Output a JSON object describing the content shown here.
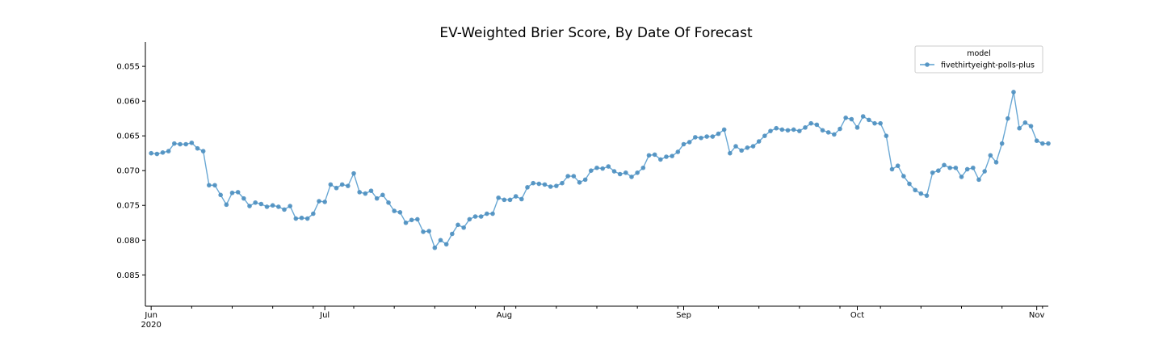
{
  "chart_data": {
    "type": "line",
    "title": "EV-Weighted Brier Score, By Date Of Forecast",
    "xlabel": "",
    "ylabel": "",
    "y_inverted": true,
    "ylim": [
      0.0515,
      0.0895
    ],
    "xlim": [
      "2020-05-31",
      "2020-11-03"
    ],
    "y_ticks": [
      0.055,
      0.06,
      0.065,
      0.07,
      0.075,
      0.08,
      0.085
    ],
    "y_tick_labels": [
      "0.055",
      "0.060",
      "0.065",
      "0.070",
      "0.075",
      "0.080",
      "0.085"
    ],
    "x_major_ticks": [
      {
        "date": "2020-06-01",
        "label": "Jun",
        "sublabel": "2020"
      },
      {
        "date": "2020-07-01",
        "label": "Jul",
        "sublabel": ""
      },
      {
        "date": "2020-08-01",
        "label": "Aug",
        "sublabel": ""
      },
      {
        "date": "2020-09-01",
        "label": "Sep",
        "sublabel": ""
      },
      {
        "date": "2020-10-01",
        "label": "Oct",
        "sublabel": ""
      },
      {
        "date": "2020-11-01",
        "label": "Nov",
        "sublabel": ""
      }
    ],
    "x_minor_ticks": [
      "2020-06-08",
      "2020-06-15",
      "2020-06-22",
      "2020-06-29",
      "2020-07-06",
      "2020-07-13",
      "2020-07-20",
      "2020-07-27",
      "2020-08-03",
      "2020-08-10",
      "2020-08-17",
      "2020-08-24",
      "2020-08-31",
      "2020-09-07",
      "2020-09-14",
      "2020-09-21",
      "2020-09-28",
      "2020-10-05",
      "2020-10-12",
      "2020-10-19",
      "2020-10-26",
      "2020-11-02"
    ],
    "grid": false,
    "legend": {
      "title": "model",
      "position": "top-right"
    },
    "series": [
      {
        "name": "fivethirtyeight-polls-plus",
        "color": "#5a9fcf",
        "points": [
          [
            "2020-06-01",
            0.0675
          ],
          [
            "2020-06-02",
            0.0676
          ],
          [
            "2020-06-03",
            0.0674
          ],
          [
            "2020-06-04",
            0.0672
          ],
          [
            "2020-06-05",
            0.0661
          ],
          [
            "2020-06-06",
            0.0662
          ],
          [
            "2020-06-07",
            0.0662
          ],
          [
            "2020-06-08",
            0.066
          ],
          [
            "2020-06-09",
            0.0668
          ],
          [
            "2020-06-10",
            0.0672
          ],
          [
            "2020-06-11",
            0.0721
          ],
          [
            "2020-06-12",
            0.0721
          ],
          [
            "2020-06-13",
            0.0735
          ],
          [
            "2020-06-14",
            0.0749
          ],
          [
            "2020-06-15",
            0.0732
          ],
          [
            "2020-06-16",
            0.0731
          ],
          [
            "2020-06-17",
            0.074
          ],
          [
            "2020-06-18",
            0.0751
          ],
          [
            "2020-06-19",
            0.0746
          ],
          [
            "2020-06-20",
            0.0748
          ],
          [
            "2020-06-21",
            0.0752
          ],
          [
            "2020-06-22",
            0.075
          ],
          [
            "2020-06-23",
            0.0752
          ],
          [
            "2020-06-24",
            0.0756
          ],
          [
            "2020-06-25",
            0.0751
          ],
          [
            "2020-06-26",
            0.0769
          ],
          [
            "2020-06-27",
            0.0768
          ],
          [
            "2020-06-28",
            0.0769
          ],
          [
            "2020-06-29",
            0.0762
          ],
          [
            "2020-06-30",
            0.0744
          ],
          [
            "2020-07-01",
            0.0745
          ],
          [
            "2020-07-02",
            0.072
          ],
          [
            "2020-07-03",
            0.0725
          ],
          [
            "2020-07-04",
            0.072
          ],
          [
            "2020-07-05",
            0.0722
          ],
          [
            "2020-07-06",
            0.0704
          ],
          [
            "2020-07-07",
            0.0731
          ],
          [
            "2020-07-08",
            0.0733
          ],
          [
            "2020-07-09",
            0.0729
          ],
          [
            "2020-07-10",
            0.074
          ],
          [
            "2020-07-11",
            0.0735
          ],
          [
            "2020-07-12",
            0.0746
          ],
          [
            "2020-07-13",
            0.0758
          ],
          [
            "2020-07-14",
            0.076
          ],
          [
            "2020-07-15",
            0.0775
          ],
          [
            "2020-07-16",
            0.0771
          ],
          [
            "2020-07-17",
            0.077
          ],
          [
            "2020-07-18",
            0.0788
          ],
          [
            "2020-07-19",
            0.0787
          ],
          [
            "2020-07-20",
            0.0811
          ],
          [
            "2020-07-21",
            0.08
          ],
          [
            "2020-07-22",
            0.0806
          ],
          [
            "2020-07-23",
            0.0791
          ],
          [
            "2020-07-24",
            0.0778
          ],
          [
            "2020-07-25",
            0.0782
          ],
          [
            "2020-07-26",
            0.077
          ],
          [
            "2020-07-27",
            0.0766
          ],
          [
            "2020-07-28",
            0.0766
          ],
          [
            "2020-07-29",
            0.0762
          ],
          [
            "2020-07-30",
            0.0762
          ],
          [
            "2020-07-31",
            0.0739
          ],
          [
            "2020-08-01",
            0.0742
          ],
          [
            "2020-08-02",
            0.0742
          ],
          [
            "2020-08-03",
            0.0737
          ],
          [
            "2020-08-04",
            0.0741
          ],
          [
            "2020-08-05",
            0.0724
          ],
          [
            "2020-08-06",
            0.0718
          ],
          [
            "2020-08-07",
            0.0719
          ],
          [
            "2020-08-08",
            0.072
          ],
          [
            "2020-08-09",
            0.0723
          ],
          [
            "2020-08-10",
            0.0722
          ],
          [
            "2020-08-11",
            0.0718
          ],
          [
            "2020-08-12",
            0.0708
          ],
          [
            "2020-08-13",
            0.0708
          ],
          [
            "2020-08-14",
            0.0717
          ],
          [
            "2020-08-15",
            0.0713
          ],
          [
            "2020-08-16",
            0.07
          ],
          [
            "2020-08-17",
            0.0696
          ],
          [
            "2020-08-18",
            0.0697
          ],
          [
            "2020-08-19",
            0.0694
          ],
          [
            "2020-08-20",
            0.0701
          ],
          [
            "2020-08-21",
            0.0705
          ],
          [
            "2020-08-22",
            0.0703
          ],
          [
            "2020-08-23",
            0.0709
          ],
          [
            "2020-08-24",
            0.0703
          ],
          [
            "2020-08-25",
            0.0696
          ],
          [
            "2020-08-26",
            0.0678
          ],
          [
            "2020-08-27",
            0.0677
          ],
          [
            "2020-08-28",
            0.0684
          ],
          [
            "2020-08-29",
            0.068
          ],
          [
            "2020-08-30",
            0.0679
          ],
          [
            "2020-08-31",
            0.0673
          ],
          [
            "2020-09-01",
            0.0662
          ],
          [
            "2020-09-02",
            0.0659
          ],
          [
            "2020-09-03",
            0.0652
          ],
          [
            "2020-09-04",
            0.0653
          ],
          [
            "2020-09-05",
            0.0651
          ],
          [
            "2020-09-06",
            0.0651
          ],
          [
            "2020-09-07",
            0.0647
          ],
          [
            "2020-09-08",
            0.0641
          ],
          [
            "2020-09-09",
            0.0675
          ],
          [
            "2020-09-10",
            0.0665
          ],
          [
            "2020-09-11",
            0.0671
          ],
          [
            "2020-09-12",
            0.0667
          ],
          [
            "2020-09-13",
            0.0665
          ],
          [
            "2020-09-14",
            0.0658
          ],
          [
            "2020-09-15",
            0.065
          ],
          [
            "2020-09-16",
            0.0643
          ],
          [
            "2020-09-17",
            0.0639
          ],
          [
            "2020-09-18",
            0.0641
          ],
          [
            "2020-09-19",
            0.0642
          ],
          [
            "2020-09-20",
            0.0641
          ],
          [
            "2020-09-21",
            0.0643
          ],
          [
            "2020-09-22",
            0.0638
          ],
          [
            "2020-09-23",
            0.0632
          ],
          [
            "2020-09-24",
            0.0634
          ],
          [
            "2020-09-25",
            0.0642
          ],
          [
            "2020-09-26",
            0.0645
          ],
          [
            "2020-09-27",
            0.0648
          ],
          [
            "2020-09-28",
            0.064
          ],
          [
            "2020-09-29",
            0.0624
          ],
          [
            "2020-09-30",
            0.0626
          ],
          [
            "2020-10-01",
            0.0638
          ],
          [
            "2020-10-02",
            0.0622
          ],
          [
            "2020-10-03",
            0.0627
          ],
          [
            "2020-10-04",
            0.0632
          ],
          [
            "2020-10-05",
            0.0632
          ],
          [
            "2020-10-06",
            0.065
          ],
          [
            "2020-10-07",
            0.0698
          ],
          [
            "2020-10-08",
            0.0693
          ],
          [
            "2020-10-09",
            0.0708
          ],
          [
            "2020-10-10",
            0.0719
          ],
          [
            "2020-10-11",
            0.0728
          ],
          [
            "2020-10-12",
            0.0733
          ],
          [
            "2020-10-13",
            0.0736
          ],
          [
            "2020-10-14",
            0.0703
          ],
          [
            "2020-10-15",
            0.07
          ],
          [
            "2020-10-16",
            0.0692
          ],
          [
            "2020-10-17",
            0.0696
          ],
          [
            "2020-10-18",
            0.0696
          ],
          [
            "2020-10-19",
            0.0709
          ],
          [
            "2020-10-20",
            0.0698
          ],
          [
            "2020-10-21",
            0.0696
          ],
          [
            "2020-10-22",
            0.0713
          ],
          [
            "2020-10-23",
            0.0701
          ],
          [
            "2020-10-24",
            0.0678
          ],
          [
            "2020-10-25",
            0.0688
          ],
          [
            "2020-10-26",
            0.0661
          ],
          [
            "2020-10-27",
            0.0625
          ],
          [
            "2020-10-28",
            0.0587
          ],
          [
            "2020-10-29",
            0.0639
          ],
          [
            "2020-10-30",
            0.0631
          ],
          [
            "2020-10-31",
            0.0636
          ],
          [
            "2020-11-01",
            0.0657
          ],
          [
            "2020-11-02",
            0.0661
          ],
          [
            "2020-11-03",
            0.0661
          ]
        ]
      }
    ]
  }
}
